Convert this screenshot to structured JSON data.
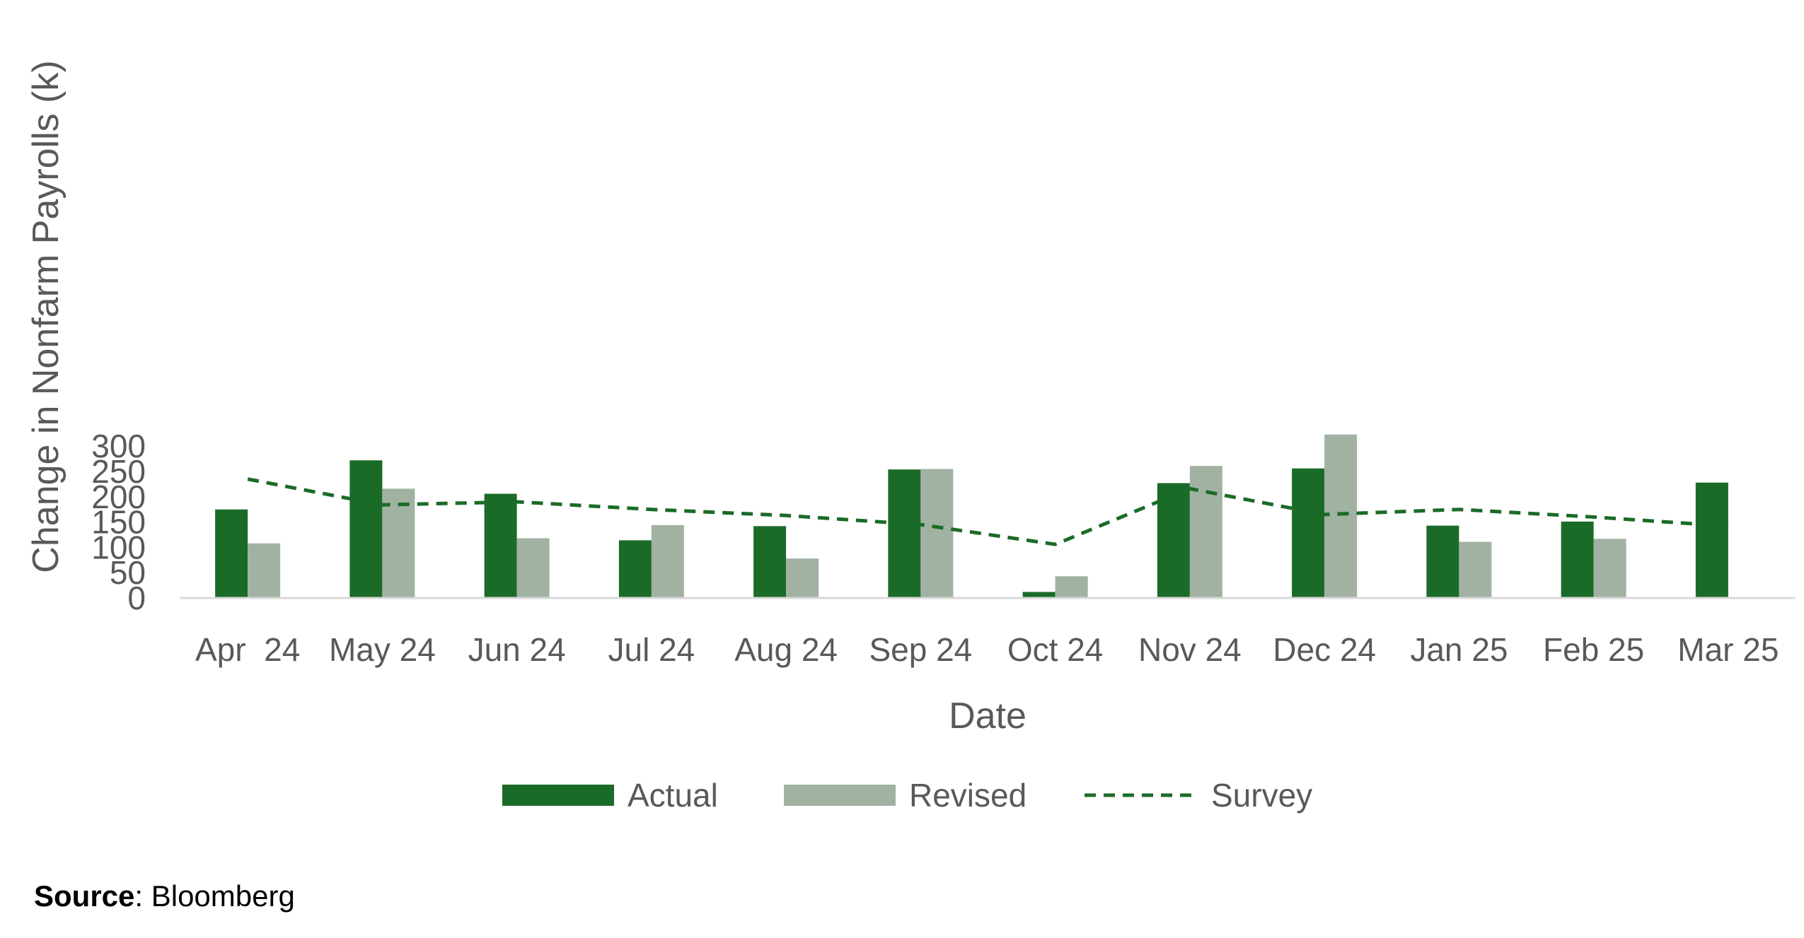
{
  "chart_data": {
    "type": "bar",
    "title": "",
    "xlabel": "Date",
    "ylabel": "Change in Nonfarm Payrolls (k)",
    "ylim": [
      0,
      330
    ],
    "yticks": [
      0,
      50,
      100,
      150,
      200,
      250,
      300
    ],
    "grid": false,
    "legend_position": "bottom",
    "categories": [
      "Apr  24",
      "May 24",
      "Jun 24",
      "Jul 24",
      "Aug 24",
      "Sep 24",
      "Oct 24",
      "Nov 24",
      "Dec 24",
      "Jan 25",
      "Feb 25",
      "Mar 25"
    ],
    "series": [
      {
        "name": "Actual",
        "type": "bar",
        "color": "#1b6b28",
        "values": [
          175,
          272,
          206,
          114,
          142,
          254,
          12,
          227,
          256,
          143,
          151,
          228
        ]
      },
      {
        "name": "Revised",
        "type": "bar",
        "color": "#a1b2a2",
        "values": [
          108,
          216,
          118,
          144,
          78,
          255,
          43,
          261,
          323,
          111,
          117,
          null
        ]
      },
      {
        "name": "Survey",
        "type": "line",
        "style": "dashed",
        "color": "#1b6b28",
        "values": [
          235,
          184,
          190,
          175,
          163,
          145,
          106,
          216,
          165,
          175,
          160,
          142
        ]
      }
    ]
  },
  "source": {
    "label": "Source",
    "text": ": Bloomberg"
  }
}
